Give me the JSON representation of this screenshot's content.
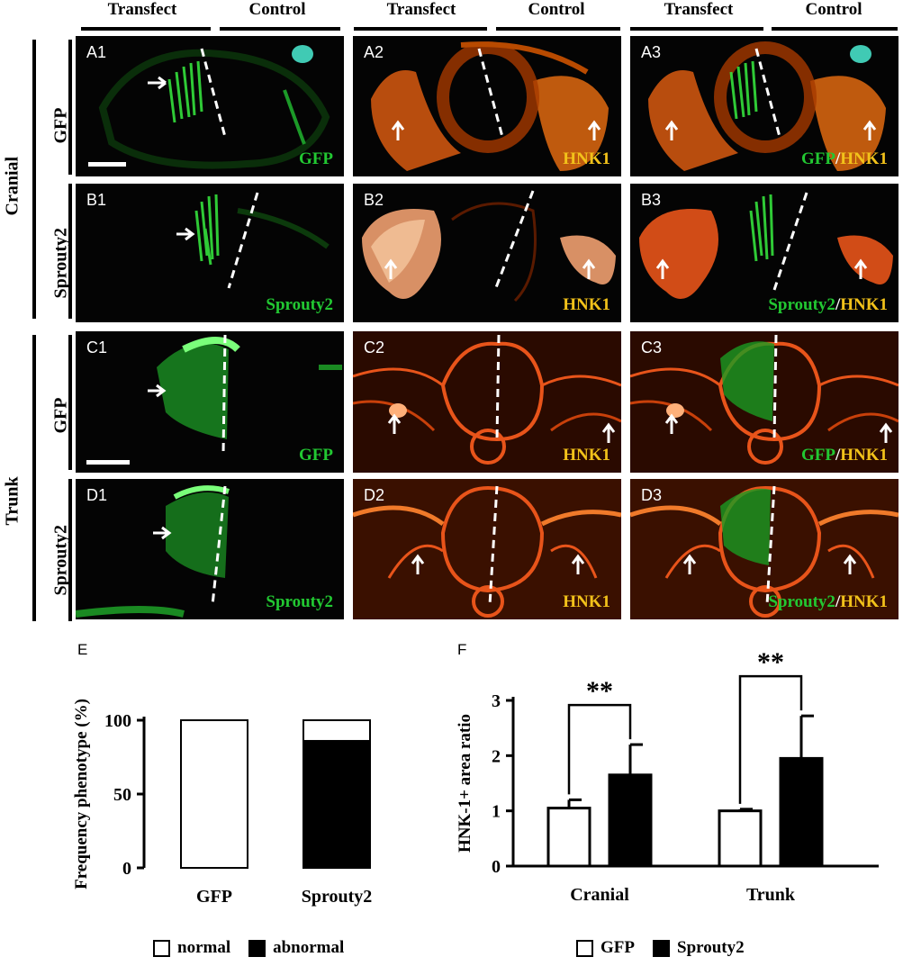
{
  "column_headers": [
    "Transfect",
    "Control",
    "Transfect",
    "Control",
    "Transfect",
    "Control"
  ],
  "row_groups": {
    "cranial": "Cranial",
    "trunk": "Trunk"
  },
  "row_labels": [
    "GFP",
    "Sprouty2",
    "GFP",
    "Sprouty2"
  ],
  "panels": [
    {
      "id": "A1",
      "stain": [
        {
          "text": "GFP",
          "color": "#22c832"
        }
      ]
    },
    {
      "id": "A2",
      "stain": [
        {
          "text": "HNK1",
          "color": "#f2c21a"
        }
      ]
    },
    {
      "id": "A3",
      "stain": [
        {
          "text": "GFP",
          "color": "#22c832"
        },
        {
          "text": "/",
          "color": "#ffffff"
        },
        {
          "text": "HNK1",
          "color": "#f2c21a"
        }
      ]
    },
    {
      "id": "B1",
      "stain": [
        {
          "text": "Sprouty2",
          "color": "#22c832"
        }
      ]
    },
    {
      "id": "B2",
      "stain": [
        {
          "text": "HNK1",
          "color": "#f2c21a"
        }
      ]
    },
    {
      "id": "B3",
      "stain": [
        {
          "text": "Sprouty2",
          "color": "#22c832"
        },
        {
          "text": "/",
          "color": "#ffffff"
        },
        {
          "text": "HNK1",
          "color": "#f2c21a"
        }
      ]
    },
    {
      "id": "C1",
      "stain": [
        {
          "text": "GFP",
          "color": "#22c832"
        }
      ]
    },
    {
      "id": "C2",
      "stain": [
        {
          "text": "HNK1",
          "color": "#f2c21a"
        }
      ]
    },
    {
      "id": "C3",
      "stain": [
        {
          "text": "GFP",
          "color": "#22c832"
        },
        {
          "text": "/",
          "color": "#ffffff"
        },
        {
          "text": "HNK1",
          "color": "#f2c21a"
        }
      ]
    },
    {
      "id": "D1",
      "stain": [
        {
          "text": "Sprouty2",
          "color": "#22c832"
        }
      ]
    },
    {
      "id": "D2",
      "stain": [
        {
          "text": "HNK1",
          "color": "#f2c21a"
        }
      ]
    },
    {
      "id": "D3",
      "stain": [
        {
          "text": "Sprouty2",
          "color": "#22c832"
        },
        {
          "text": "/",
          "color": "#ffffff"
        },
        {
          "text": "HNK1",
          "color": "#f2c21a"
        }
      ]
    }
  ],
  "panel_E_letter": "E",
  "panel_F_letter": "F",
  "legend_E": {
    "normal": "normal",
    "abnormal": "abnormal"
  },
  "legend_F": {
    "gfp": "GFP",
    "sprouty2": "Sprouty2"
  },
  "colors": {
    "green": "#22c832",
    "yellow": "#f2c21a",
    "hnk_orange": "#ff7a1a"
  },
  "chart_data": [
    {
      "type": "bar",
      "stacked": true,
      "categories": [
        "GFP",
        "Sprouty2"
      ],
      "series": [
        {
          "name": "normal",
          "values": [
            100,
            14
          ],
          "fill": "#ffffff"
        },
        {
          "name": "abnormal",
          "values": [
            0,
            86
          ],
          "fill": "#000000"
        }
      ],
      "ylabel": "Frequency phenotype (%)",
      "ylim": [
        0,
        100
      ],
      "yticks": [
        0,
        50,
        100
      ]
    },
    {
      "type": "bar",
      "grouped": true,
      "categories": [
        "Cranial",
        "Trunk"
      ],
      "series": [
        {
          "name": "GFP",
          "values": [
            1.05,
            1.0
          ],
          "errors": [
            0.15,
            0.03
          ],
          "fill": "#ffffff"
        },
        {
          "name": "Sprouty2",
          "values": [
            1.65,
            1.95
          ],
          "errors": [
            0.55,
            0.77
          ],
          "fill": "#000000"
        }
      ],
      "ylabel": "HNK-1+ area ratio",
      "ylim": [
        0,
        3
      ],
      "yticks": [
        0,
        1,
        2,
        3
      ],
      "annotations": [
        "**",
        "**"
      ]
    }
  ]
}
